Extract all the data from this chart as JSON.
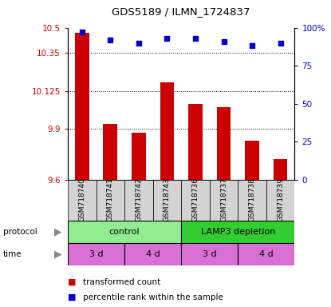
{
  "title": "GDS5189 / ILMN_1724837",
  "samples": [
    "GSM718740",
    "GSM718741",
    "GSM718742",
    "GSM718743",
    "GSM718736",
    "GSM718737",
    "GSM718738",
    "GSM718739"
  ],
  "red_values": [
    10.47,
    9.93,
    9.88,
    10.175,
    10.05,
    10.03,
    9.83,
    9.72
  ],
  "blue_values": [
    97,
    92,
    90,
    93,
    93,
    91,
    88,
    90
  ],
  "ylim_left": [
    9.6,
    10.5
  ],
  "ylim_right": [
    0,
    100
  ],
  "yticks_left": [
    9.6,
    9.9,
    10.125,
    10.35,
    10.5
  ],
  "ytick_labels_left": [
    "9.6",
    "9.9",
    "10.125",
    "10.35",
    "10.5"
  ],
  "yticks_right": [
    0,
    25,
    50,
    75,
    100
  ],
  "ytick_labels_right": [
    "0",
    "25",
    "50",
    "75",
    "100%"
  ],
  "protocol_colors": [
    "#90ee90",
    "#32cd32"
  ],
  "time_color": "#da70d6",
  "bar_color": "#cc0000",
  "dot_color": "#0000cc",
  "background_color": "#ffffff",
  "label_color_red": "#cc0000",
  "label_color_blue": "#0000cc",
  "gridline_ticks": [
    9.9,
    10.125,
    10.35
  ],
  "time_segments": [
    [
      0,
      2,
      "3 d"
    ],
    [
      2,
      4,
      "4 d"
    ],
    [
      4,
      6,
      "3 d"
    ],
    [
      6,
      8,
      "4 d"
    ]
  ],
  "protocol_segments": [
    [
      0,
      4,
      "control",
      0
    ],
    [
      4,
      8,
      "LAMP3 depletion",
      1
    ]
  ]
}
